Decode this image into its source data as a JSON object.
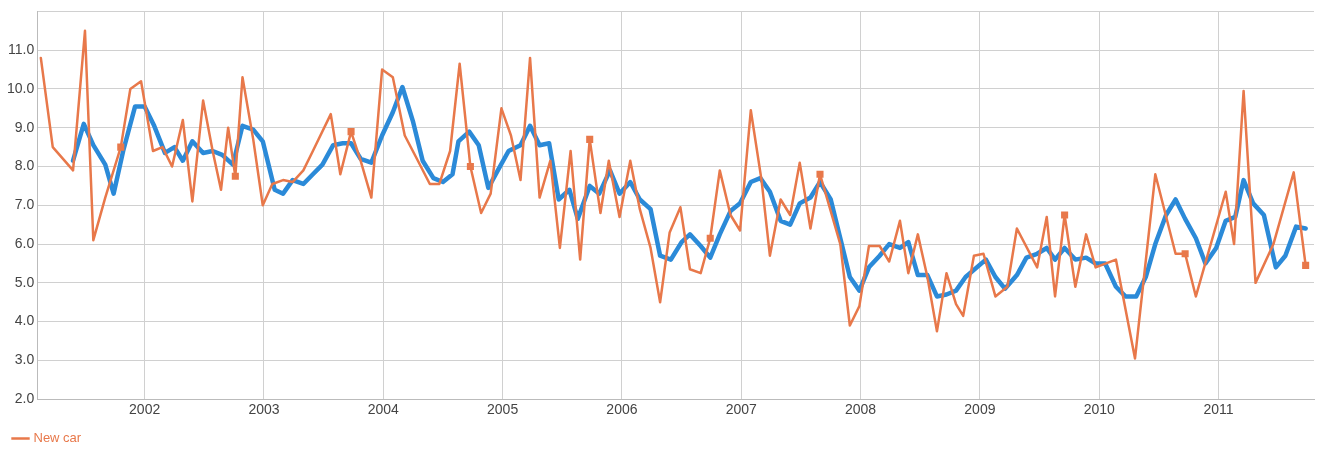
{
  "chart_data": {
    "type": "line",
    "xlim": [
      2001.1,
      2011.8
    ],
    "xticks": [
      2002,
      2003,
      2004,
      2005,
      2006,
      2007,
      2008,
      2009,
      2010,
      2011
    ],
    "ylim": [
      2,
      12
    ],
    "yticks": [
      {
        "value": 2,
        "label": "2.0"
      },
      {
        "value": 3,
        "label": "3.0"
      },
      {
        "value": 4,
        "label": "4.0"
      },
      {
        "value": 5,
        "label": "5.0"
      },
      {
        "value": 6,
        "label": "6.0"
      },
      {
        "value": 7,
        "label": "7.0"
      },
      {
        "value": 8,
        "label": "8.0"
      },
      {
        "value": 9,
        "label": "9.0"
      },
      {
        "value": 10,
        "label": "10.0"
      },
      {
        "value": 11,
        "label": "11.0"
      },
      {
        "value": 12,
        "label": null
      }
    ],
    "grid": true,
    "legend": "bottom left",
    "marker": "none",
    "line_style": "solid",
    "series": [
      {
        "name": "New car",
        "color": "#e8784a",
        "x": [
          2001.13,
          2001.23,
          2001.4,
          2001.5,
          2001.57,
          2001.67,
          2001.8,
          2001.88,
          2001.97,
          2002.07,
          2002.15,
          2002.23,
          2002.32,
          2002.4,
          2002.49,
          2002.57,
          2002.64,
          2002.7,
          2002.76,
          2002.82,
          2002.91,
          2002.99,
          2003.07,
          2003.16,
          2003.24,
          2003.33,
          2003.41,
          2003.56,
          2003.64,
          2003.73,
          2003.81,
          2003.9,
          2003.99,
          2004.08,
          2004.18,
          2004.29,
          2004.39,
          2004.47,
          2004.56,
          2004.64,
          2004.73,
          2004.82,
          2004.9,
          2004.99,
          2005.07,
          2005.15,
          2005.23,
          2005.31,
          2005.4,
          2005.48,
          2005.57,
          2005.65,
          2005.73,
          2005.82,
          2005.89,
          2005.98,
          2006.07,
          2006.15,
          2006.24,
          2006.32,
          2006.4,
          2006.49,
          2006.57,
          2006.66,
          2006.74,
          2006.82,
          2006.91,
          2006.99,
          2007.08,
          2007.17,
          2007.24,
          2007.33,
          2007.41,
          2007.49,
          2007.58,
          2007.66,
          2007.83,
          2007.91,
          2007.99,
          2008.07,
          2008.16,
          2008.24,
          2008.33,
          2008.4,
          2008.48,
          2008.56,
          2008.64,
          2008.72,
          2008.8,
          2008.86,
          2008.95,
          2009.03,
          2009.13,
          2009.23,
          2009.31,
          2009.48,
          2009.56,
          2009.63,
          2009.71,
          2009.8,
          2009.89,
          2009.97,
          2010.14,
          2010.3,
          2010.47,
          2010.64,
          2010.72,
          2010.81,
          2011.06,
          2011.13,
          2011.21,
          2011.31,
          2011.46,
          2011.63,
          2011.73
        ],
        "values": [
          10.8,
          8.5,
          7.9,
          11.5,
          6.1,
          7.2,
          8.5,
          10.0,
          10.2,
          8.4,
          8.5,
          8.0,
          9.2,
          7.1,
          9.7,
          8.4,
          7.4,
          9.0,
          7.75,
          10.3,
          8.7,
          7.0,
          7.55,
          7.65,
          7.6,
          7.9,
          8.4,
          9.35,
          7.8,
          8.9,
          8.15,
          7.2,
          10.5,
          10.3,
          8.8,
          8.15,
          7.55,
          7.55,
          8.4,
          10.65,
          8.0,
          6.8,
          7.3,
          9.5,
          8.8,
          7.65,
          10.8,
          7.2,
          8.15,
          5.9,
          8.4,
          5.6,
          8.7,
          6.8,
          8.15,
          6.7,
          8.15,
          6.9,
          5.9,
          4.5,
          6.3,
          6.95,
          5.35,
          5.25,
          6.15,
          7.9,
          6.75,
          6.35,
          9.45,
          7.65,
          5.7,
          7.15,
          6.75,
          8.1,
          6.4,
          7.8,
          6.0,
          3.9,
          4.4,
          5.95,
          5.95,
          5.55,
          6.6,
          5.25,
          6.25,
          5.15,
          3.75,
          5.25,
          4.45,
          4.15,
          5.7,
          5.75,
          4.65,
          4.9,
          6.4,
          5.4,
          6.7,
          4.65,
          6.75,
          4.9,
          6.25,
          5.4,
          5.6,
          3.05,
          7.8,
          5.75,
          5.75,
          4.65,
          7.35,
          6.0,
          9.95,
          5.0,
          6.0,
          7.85,
          5.45
        ]
      },
      {
        "type": "scatter",
        "marker": "square",
        "color": "#e8784a",
        "x": [
          2001.8,
          2002.76,
          2003.73,
          2004.73,
          2005.73,
          2006.74,
          2007.66,
          2009.71,
          2010.72,
          2011.73
        ],
        "values": [
          8.5,
          7.75,
          8.9,
          8.0,
          8.7,
          6.15,
          7.8,
          6.75,
          5.75,
          5.45
        ]
      },
      {
        "color": "#2b8ad8",
        "x": [
          2001.4,
          2001.49,
          2001.57,
          2001.67,
          2001.74,
          2001.82,
          2001.92,
          2002.0,
          2002.08,
          2002.17,
          2002.25,
          2002.32,
          2002.4,
          2002.49,
          2002.57,
          2002.65,
          2002.74,
          2002.82,
          2002.91,
          2002.99,
          2003.09,
          2003.16,
          2003.24,
          2003.33,
          2003.41,
          2003.49,
          2003.58,
          2003.66,
          2003.73,
          2003.81,
          2003.9,
          2003.99,
          2004.08,
          2004.16,
          2004.25,
          2004.33,
          2004.42,
          2004.5,
          2004.58,
          2004.63,
          2004.72,
          2004.8,
          2004.88,
          2004.96,
          2005.05,
          2005.15,
          2005.23,
          2005.31,
          2005.39,
          2005.47,
          2005.56,
          2005.63,
          2005.73,
          2005.81,
          2005.9,
          2005.98,
          2006.07,
          2006.15,
          2006.24,
          2006.32,
          2006.41,
          2006.5,
          2006.57,
          2006.66,
          2006.74,
          2006.82,
          2006.91,
          2006.99,
          2007.08,
          2007.16,
          2007.24,
          2007.33,
          2007.41,
          2007.49,
          2007.58,
          2007.66,
          2007.75,
          2007.83,
          2007.91,
          2007.99,
          2008.07,
          2008.16,
          2008.24,
          2008.33,
          2008.4,
          2008.48,
          2008.56,
          2008.64,
          2008.72,
          2008.8,
          2008.88,
          2009.05,
          2009.13,
          2009.21,
          2009.31,
          2009.39,
          2009.48,
          2009.56,
          2009.63,
          2009.71,
          2009.8,
          2009.89,
          2009.97,
          2010.05,
          2010.14,
          2010.22,
          2010.31,
          2010.39,
          2010.47,
          2010.56,
          2010.64,
          2010.72,
          2010.81,
          2010.89,
          2010.98,
          2011.06,
          2011.14,
          2011.21,
          2011.29,
          2011.38,
          2011.48,
          2011.56,
          2011.65,
          2011.73
        ],
        "values": [
          8.15,
          9.1,
          8.55,
          8.05,
          7.3,
          8.4,
          9.55,
          9.55,
          9.05,
          8.35,
          8.5,
          8.15,
          8.65,
          8.35,
          8.4,
          8.3,
          8.05,
          9.05,
          8.95,
          8.65,
          7.4,
          7.3,
          7.65,
          7.55,
          7.8,
          8.05,
          8.55,
          8.6,
          8.6,
          8.2,
          8.1,
          8.8,
          9.4,
          10.05,
          9.15,
          8.15,
          7.7,
          7.6,
          7.8,
          8.65,
          8.9,
          8.55,
          7.45,
          7.9,
          8.4,
          8.55,
          9.05,
          8.55,
          8.6,
          7.15,
          7.4,
          6.65,
          7.5,
          7.3,
          7.9,
          7.3,
          7.6,
          7.15,
          6.9,
          5.7,
          5.6,
          6.05,
          6.25,
          5.95,
          5.65,
          6.25,
          6.85,
          7.05,
          7.6,
          7.7,
          7.35,
          6.6,
          6.5,
          7.05,
          7.2,
          7.6,
          7.15,
          6.15,
          5.15,
          4.8,
          5.4,
          5.7,
          6.0,
          5.9,
          6.05,
          5.2,
          5.2,
          4.65,
          4.7,
          4.8,
          5.15,
          5.6,
          5.15,
          4.85,
          5.2,
          5.65,
          5.75,
          5.9,
          5.6,
          5.9,
          5.6,
          5.65,
          5.5,
          5.5,
          4.9,
          4.65,
          4.65,
          5.15,
          6.0,
          6.75,
          7.15,
          6.65,
          6.15,
          5.5,
          5.9,
          6.6,
          6.7,
          7.65,
          7.05,
          6.75,
          5.4,
          5.7,
          6.45,
          6.4
        ]
      }
    ]
  }
}
